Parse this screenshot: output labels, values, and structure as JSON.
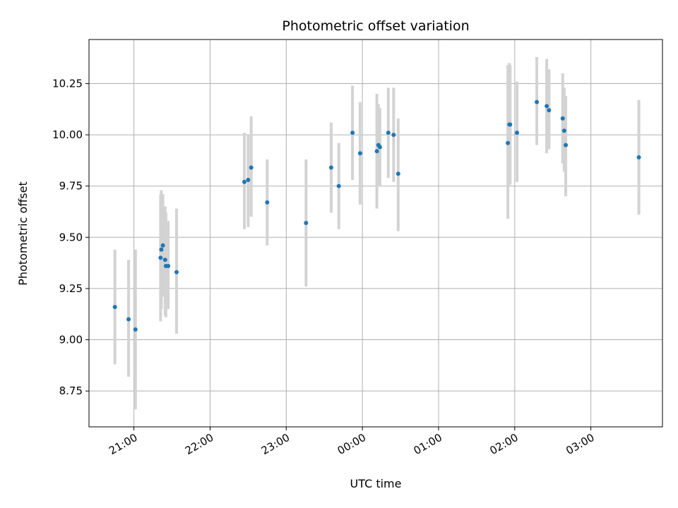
{
  "chart_data": {
    "type": "scatter",
    "title": "Photometric offset variation",
    "xlabel": "UTC time",
    "ylabel": "Photometric offset",
    "grid": true,
    "x_unit": "hours since 20:00 UTC",
    "xlim": [
      0.41,
      7.94
    ],
    "ylim": [
      8.575,
      10.465
    ],
    "x_ticks": [
      {
        "value": 1,
        "label": "21:00"
      },
      {
        "value": 2,
        "label": "22:00"
      },
      {
        "value": 3,
        "label": "23:00"
      },
      {
        "value": 4,
        "label": "00:00"
      },
      {
        "value": 5,
        "label": "01:00"
      },
      {
        "value": 6,
        "label": "02:00"
      },
      {
        "value": 7,
        "label": "03:00"
      }
    ],
    "y_ticks": [
      {
        "value": 8.75,
        "label": "8.75"
      },
      {
        "value": 9.0,
        "label": "9.00"
      },
      {
        "value": 9.25,
        "label": "9.25"
      },
      {
        "value": 9.5,
        "label": "9.50"
      },
      {
        "value": 9.75,
        "label": "9.75"
      },
      {
        "value": 10.0,
        "label": "10.00"
      },
      {
        "value": 10.25,
        "label": "10.25"
      }
    ],
    "colors": {
      "point": "#1f77b4",
      "errorbar": "#d3d3d3",
      "grid": "#b0b0b0",
      "axis": "#000000"
    },
    "points": [
      {
        "x": 0.75,
        "y": 9.16,
        "lo": 8.88,
        "hi": 9.44
      },
      {
        "x": 0.93,
        "y": 9.1,
        "lo": 8.82,
        "hi": 9.39
      },
      {
        "x": 1.02,
        "y": 9.05,
        "lo": 8.66,
        "hi": 9.44
      },
      {
        "x": 1.35,
        "y": 9.4,
        "lo": 9.09,
        "hi": 9.71
      },
      {
        "x": 1.36,
        "y": 9.44,
        "lo": 9.15,
        "hi": 9.73
      },
      {
        "x": 1.38,
        "y": 9.46,
        "lo": 9.21,
        "hi": 9.71
      },
      {
        "x": 1.41,
        "y": 9.39,
        "lo": 9.12,
        "hi": 9.65
      },
      {
        "x": 1.42,
        "y": 9.36,
        "lo": 9.11,
        "hi": 9.62
      },
      {
        "x": 1.45,
        "y": 9.36,
        "lo": 9.15,
        "hi": 9.58
      },
      {
        "x": 1.56,
        "y": 9.33,
        "lo": 9.03,
        "hi": 9.64
      },
      {
        "x": 2.45,
        "y": 9.77,
        "lo": 9.54,
        "hi": 10.01
      },
      {
        "x": 2.5,
        "y": 9.78,
        "lo": 9.55,
        "hi": 10.0
      },
      {
        "x": 2.54,
        "y": 9.84,
        "lo": 9.6,
        "hi": 10.09
      },
      {
        "x": 2.75,
        "y": 9.67,
        "lo": 9.46,
        "hi": 9.88
      },
      {
        "x": 3.26,
        "y": 9.57,
        "lo": 9.26,
        "hi": 9.88
      },
      {
        "x": 3.59,
        "y": 9.84,
        "lo": 9.62,
        "hi": 10.06
      },
      {
        "x": 3.69,
        "y": 9.75,
        "lo": 9.54,
        "hi": 9.96
      },
      {
        "x": 3.87,
        "y": 10.01,
        "lo": 9.78,
        "hi": 10.24
      },
      {
        "x": 3.97,
        "y": 9.91,
        "lo": 9.66,
        "hi": 10.16
      },
      {
        "x": 4.19,
        "y": 9.92,
        "lo": 9.64,
        "hi": 10.2
      },
      {
        "x": 4.21,
        "y": 9.95,
        "lo": 9.75,
        "hi": 10.15
      },
      {
        "x": 4.23,
        "y": 9.94,
        "lo": 9.75,
        "hi": 10.13
      },
      {
        "x": 4.34,
        "y": 10.01,
        "lo": 9.79,
        "hi": 10.23
      },
      {
        "x": 4.41,
        "y": 10.0,
        "lo": 9.77,
        "hi": 10.23
      },
      {
        "x": 4.47,
        "y": 9.81,
        "lo": 9.53,
        "hi": 10.08
      },
      {
        "x": 5.91,
        "y": 9.96,
        "lo": 9.59,
        "hi": 10.34
      },
      {
        "x": 5.93,
        "y": 10.05,
        "lo": 9.75,
        "hi": 10.35
      },
      {
        "x": 5.94,
        "y": 10.05,
        "lo": 9.76,
        "hi": 10.34
      },
      {
        "x": 6.03,
        "y": 10.01,
        "lo": 9.77,
        "hi": 10.26
      },
      {
        "x": 6.29,
        "y": 10.16,
        "lo": 9.95,
        "hi": 10.38
      },
      {
        "x": 6.42,
        "y": 10.14,
        "lo": 9.91,
        "hi": 10.37
      },
      {
        "x": 6.45,
        "y": 10.12,
        "lo": 9.93,
        "hi": 10.32
      },
      {
        "x": 6.63,
        "y": 10.08,
        "lo": 9.86,
        "hi": 10.3
      },
      {
        "x": 6.65,
        "y": 10.02,
        "lo": 9.82,
        "hi": 10.23
      },
      {
        "x": 6.67,
        "y": 9.95,
        "lo": 9.7,
        "hi": 10.19
      },
      {
        "x": 7.63,
        "y": 9.89,
        "lo": 9.61,
        "hi": 10.17
      }
    ]
  }
}
